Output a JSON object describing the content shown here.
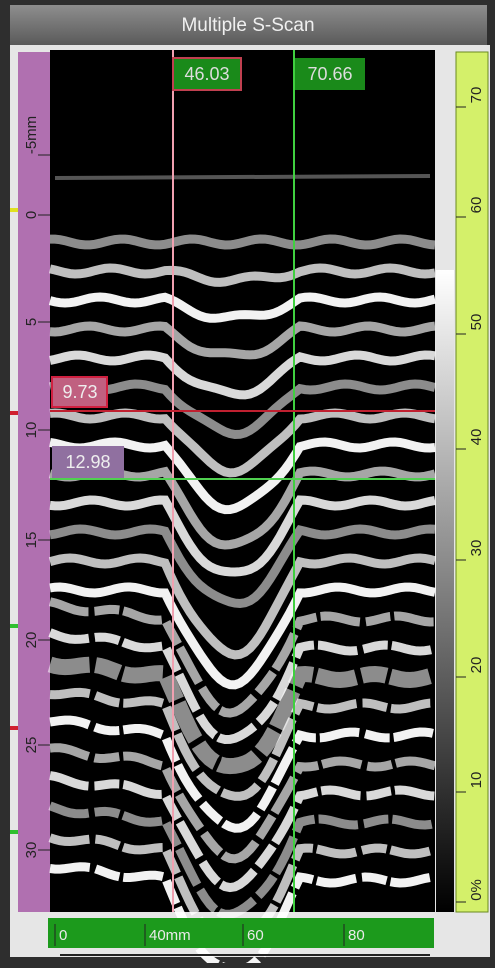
{
  "window": {
    "title": "Multiple S-Scan"
  },
  "cursors": {
    "vertical": [
      "46.03",
      "70.66"
    ],
    "horizontal": [
      "9.73",
      "12.98"
    ]
  },
  "left_ruler": {
    "labels": [
      "-5mm",
      "0",
      "5",
      "10",
      "15",
      "20",
      "25",
      "30"
    ]
  },
  "right_ruler": {
    "labels": [
      "70",
      "60",
      "50",
      "40",
      "30",
      "20",
      "10",
      "0%"
    ]
  },
  "bottom_ruler": {
    "labels": [
      "0",
      "40mm",
      "60",
      "80"
    ]
  }
}
